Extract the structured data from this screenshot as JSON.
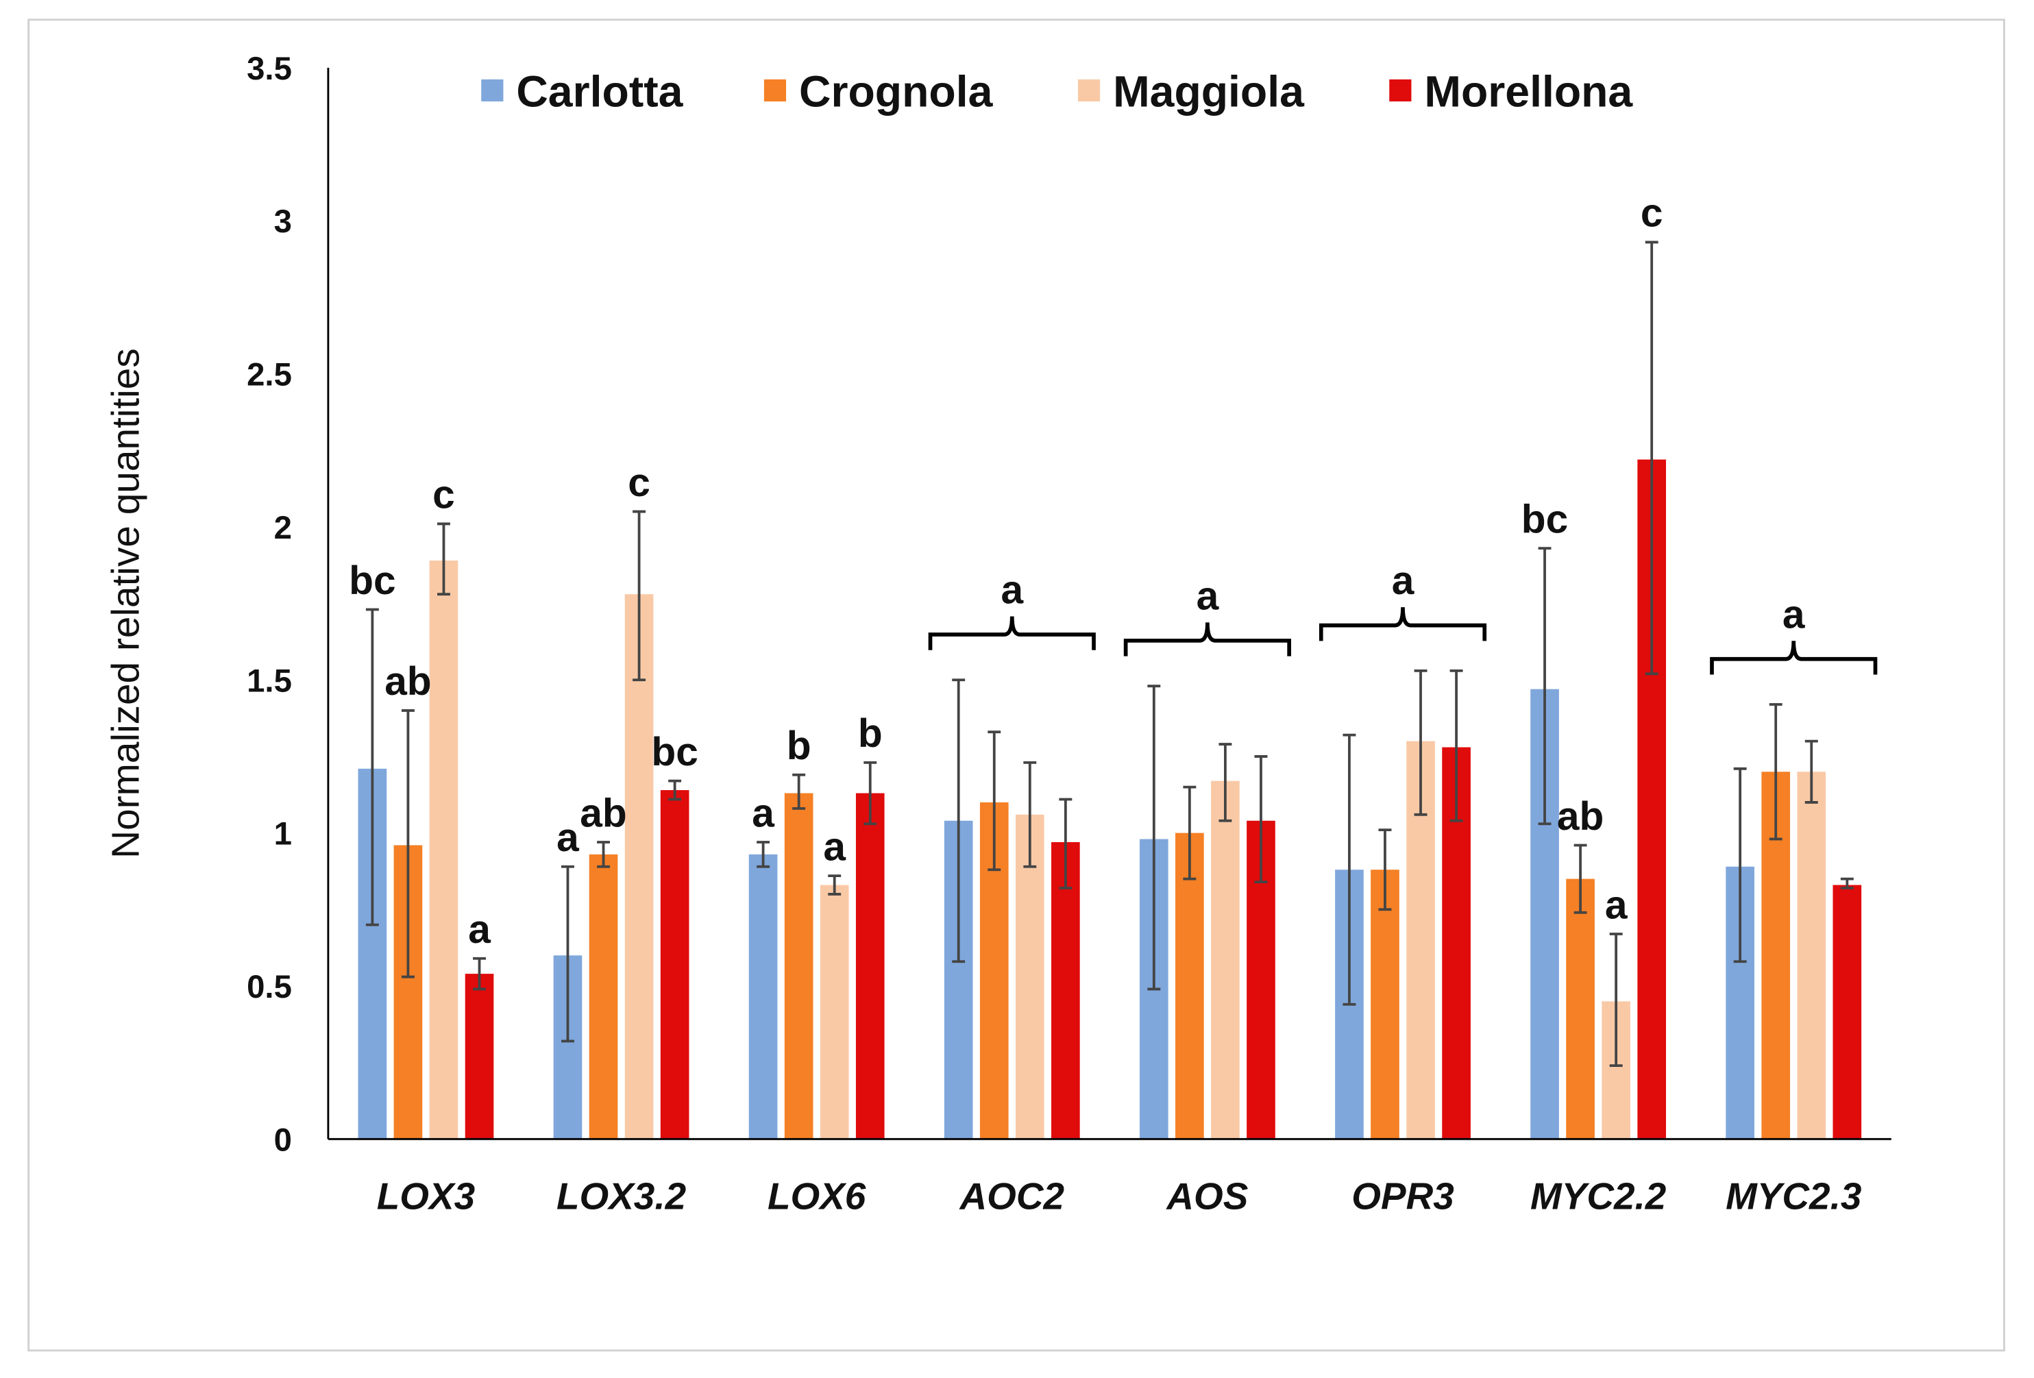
{
  "chart_data": {
    "type": "bar",
    "title": "",
    "xlabel": "",
    "ylabel": "Normalized relative quantities",
    "ylim": [
      0,
      3.5
    ],
    "yticks": [
      "0",
      "0.5",
      "1",
      "1.5",
      "2",
      "2.5",
      "3",
      "3.5"
    ],
    "grid": false,
    "legend_position": "top",
    "categories": [
      "LOX3",
      "LOX3.2",
      "LOX6",
      "AOC2",
      "AOS",
      "OPR3",
      "MYC2.2",
      "MYC2.3"
    ],
    "series": [
      {
        "name": "Carlotta",
        "color": "#7FA7DC",
        "values": [
          1.21,
          0.6,
          0.93,
          1.04,
          0.98,
          0.88,
          1.47,
          0.89
        ],
        "err_low": [
          0.7,
          0.32,
          0.89,
          0.58,
          0.49,
          0.44,
          1.03,
          0.58
        ],
        "err_high": [
          1.73,
          0.89,
          0.97,
          1.5,
          1.48,
          1.32,
          1.93,
          1.21
        ]
      },
      {
        "name": "Crognola",
        "color": "#F58025",
        "values": [
          0.96,
          0.93,
          1.13,
          1.1,
          1.0,
          0.88,
          0.85,
          1.2
        ],
        "err_low": [
          0.53,
          0.89,
          1.08,
          0.88,
          0.85,
          0.75,
          0.74,
          0.98
        ],
        "err_high": [
          1.4,
          0.97,
          1.19,
          1.33,
          1.15,
          1.01,
          0.96,
          1.42
        ]
      },
      {
        "name": "Maggiola",
        "color": "#F9C9A6",
        "values": [
          1.89,
          1.78,
          0.83,
          1.06,
          1.17,
          1.3,
          0.45,
          1.2
        ],
        "err_low": [
          1.78,
          1.5,
          0.8,
          0.89,
          1.04,
          1.06,
          0.24,
          1.1
        ],
        "err_high": [
          2.01,
          2.05,
          0.86,
          1.23,
          1.29,
          1.53,
          0.67,
          1.3
        ]
      },
      {
        "name": "Morellona",
        "color": "#E00B0B",
        "values": [
          0.54,
          1.14,
          1.13,
          0.97,
          1.04,
          1.28,
          2.22,
          0.83
        ],
        "err_low": [
          0.49,
          1.11,
          1.03,
          0.82,
          0.84,
          1.04,
          1.52,
          0.82
        ],
        "err_high": [
          0.59,
          1.17,
          1.23,
          1.11,
          1.25,
          1.53,
          2.93,
          0.85
        ]
      }
    ],
    "annotations": [
      {
        "type": "bars",
        "letters": [
          "bc",
          "ab",
          "c",
          "a"
        ]
      },
      {
        "type": "bars",
        "letters": [
          "a",
          "ab",
          "c",
          "bc"
        ]
      },
      {
        "type": "bars",
        "letters": [
          "a",
          "b",
          "a",
          "b"
        ]
      },
      {
        "type": "bracket",
        "letter": "a"
      },
      {
        "type": "bracket",
        "letter": "a"
      },
      {
        "type": "bracket",
        "letter": "a"
      },
      {
        "type": "bars",
        "letters": [
          "bc",
          "ab",
          "a",
          "c"
        ]
      },
      {
        "type": "bracket",
        "letter": "a"
      }
    ]
  }
}
